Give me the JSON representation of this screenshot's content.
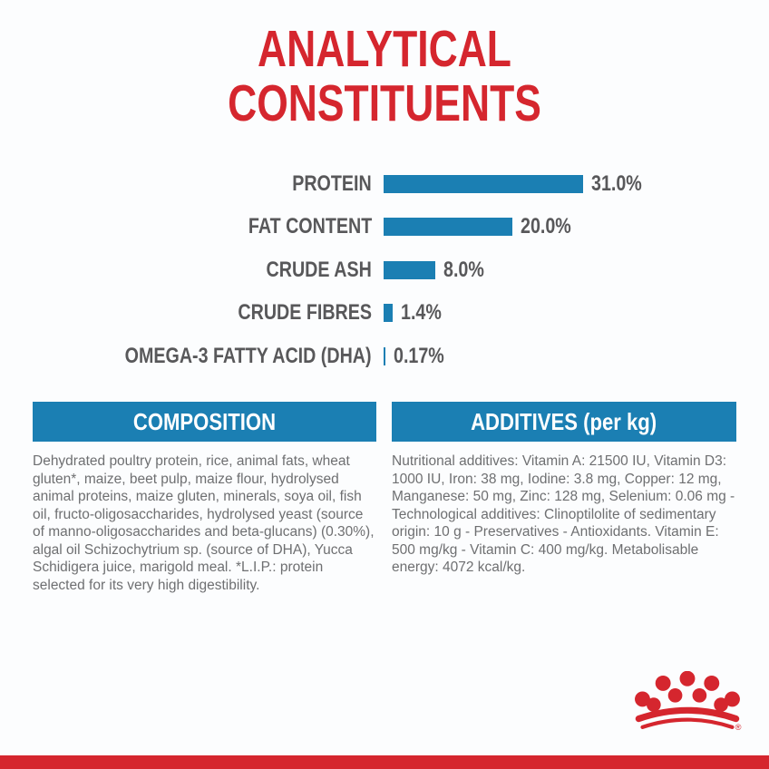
{
  "theme": {
    "red": "#d5262e",
    "blue": "#1b7fb3",
    "label_gray": "#58585a",
    "body_gray": "#6e6f71",
    "background": "#fcfdfe"
  },
  "title": {
    "line1": "ANALYTICAL",
    "line2": "CONSTITUENTS"
  },
  "chart_data": {
    "type": "bar",
    "orientation": "horizontal",
    "title": "ANALYTICAL CONSTITUENTS",
    "categories": [
      "PROTEIN",
      "FAT CONTENT",
      "CRUDE ASH",
      "CRUDE FIBRES",
      "OMEGA-3 FATTY ACID (DHA)"
    ],
    "values": [
      31.0,
      20.0,
      8.0,
      1.4,
      0.17
    ],
    "value_labels": [
      "31.0%",
      "20.0%",
      "8.0%",
      "1.4%",
      "0.17%"
    ],
    "unit": "%",
    "xlim": [
      0,
      31
    ],
    "bar_color": "#1b7fb3",
    "grid": false,
    "legend": false
  },
  "composition": {
    "header": "COMPOSITION",
    "body": "Dehydrated poultry protein, rice, animal fats, wheat gluten*, maize, beet pulp, maize flour, hydrolysed animal proteins, maize gluten, minerals, soya oil, fish oil, fructo-oligosaccharides, hydrolysed yeast (source of manno-oligosaccharides and beta-glucans) (0.30%), algal oil Schizochytrium sp. (source of DHA), Yucca Schidigera juice, marigold meal. *L.I.P.: protein selected for its very high digestibility."
  },
  "additives": {
    "header": "ADDITIVES (per kg)",
    "body": "Nutritional additives: Vitamin A: 21500 IU, Vitamin D3: 1000 IU, Iron: 38 mg, Iodine: 3.8 mg, Copper: 12 mg, Manganese: 50 mg, Zinc: 128 mg, Selenium: 0.06 mg - Technological additives: Clinoptilolite of sedimentary origin: 10 g - Preservatives - Antioxidants. Vitamin E: 500 mg/kg - Vitamin C: 400 mg/kg. Metabolisable energy: 4072 kcal/kg."
  },
  "footer": {
    "logo": "royal-canin-crown",
    "registered_mark": "®",
    "strip_color": "#d5262e"
  }
}
